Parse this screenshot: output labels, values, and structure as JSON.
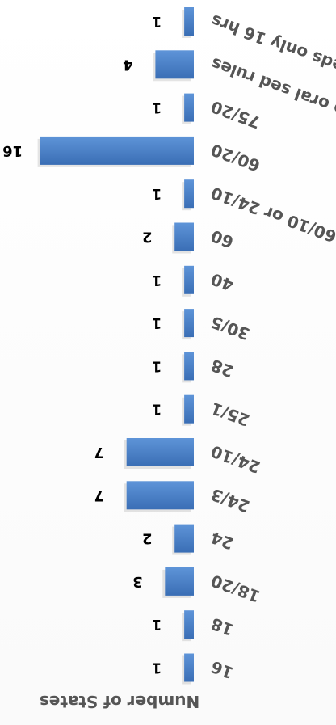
{
  "chart_data": {
    "type": "bar",
    "orientation": "horizontal",
    "rendered_rotated": "180deg",
    "title": "",
    "ylabel": "Number of States",
    "xlabel": "",
    "categories": [
      "16",
      "18",
      "18/20",
      "24",
      "24/3",
      "24/10",
      "25/1",
      "28",
      "30/5",
      "40",
      "60",
      "60/10 or 24/10",
      "60/20",
      "75/20",
      "no oral sed rules",
      "peds only 16 hrs"
    ],
    "values": [
      1,
      1,
      3,
      2,
      7,
      7,
      1,
      1,
      1,
      1,
      2,
      1,
      16,
      1,
      4,
      1
    ],
    "value_axis_range": [
      0,
      16
    ],
    "grid": false,
    "legend": "none",
    "colors": {
      "bar_top": "#5e94d8",
      "bar_bottom": "#3a6eb5",
      "label": "#000000",
      "axis_title": "#555555"
    }
  }
}
